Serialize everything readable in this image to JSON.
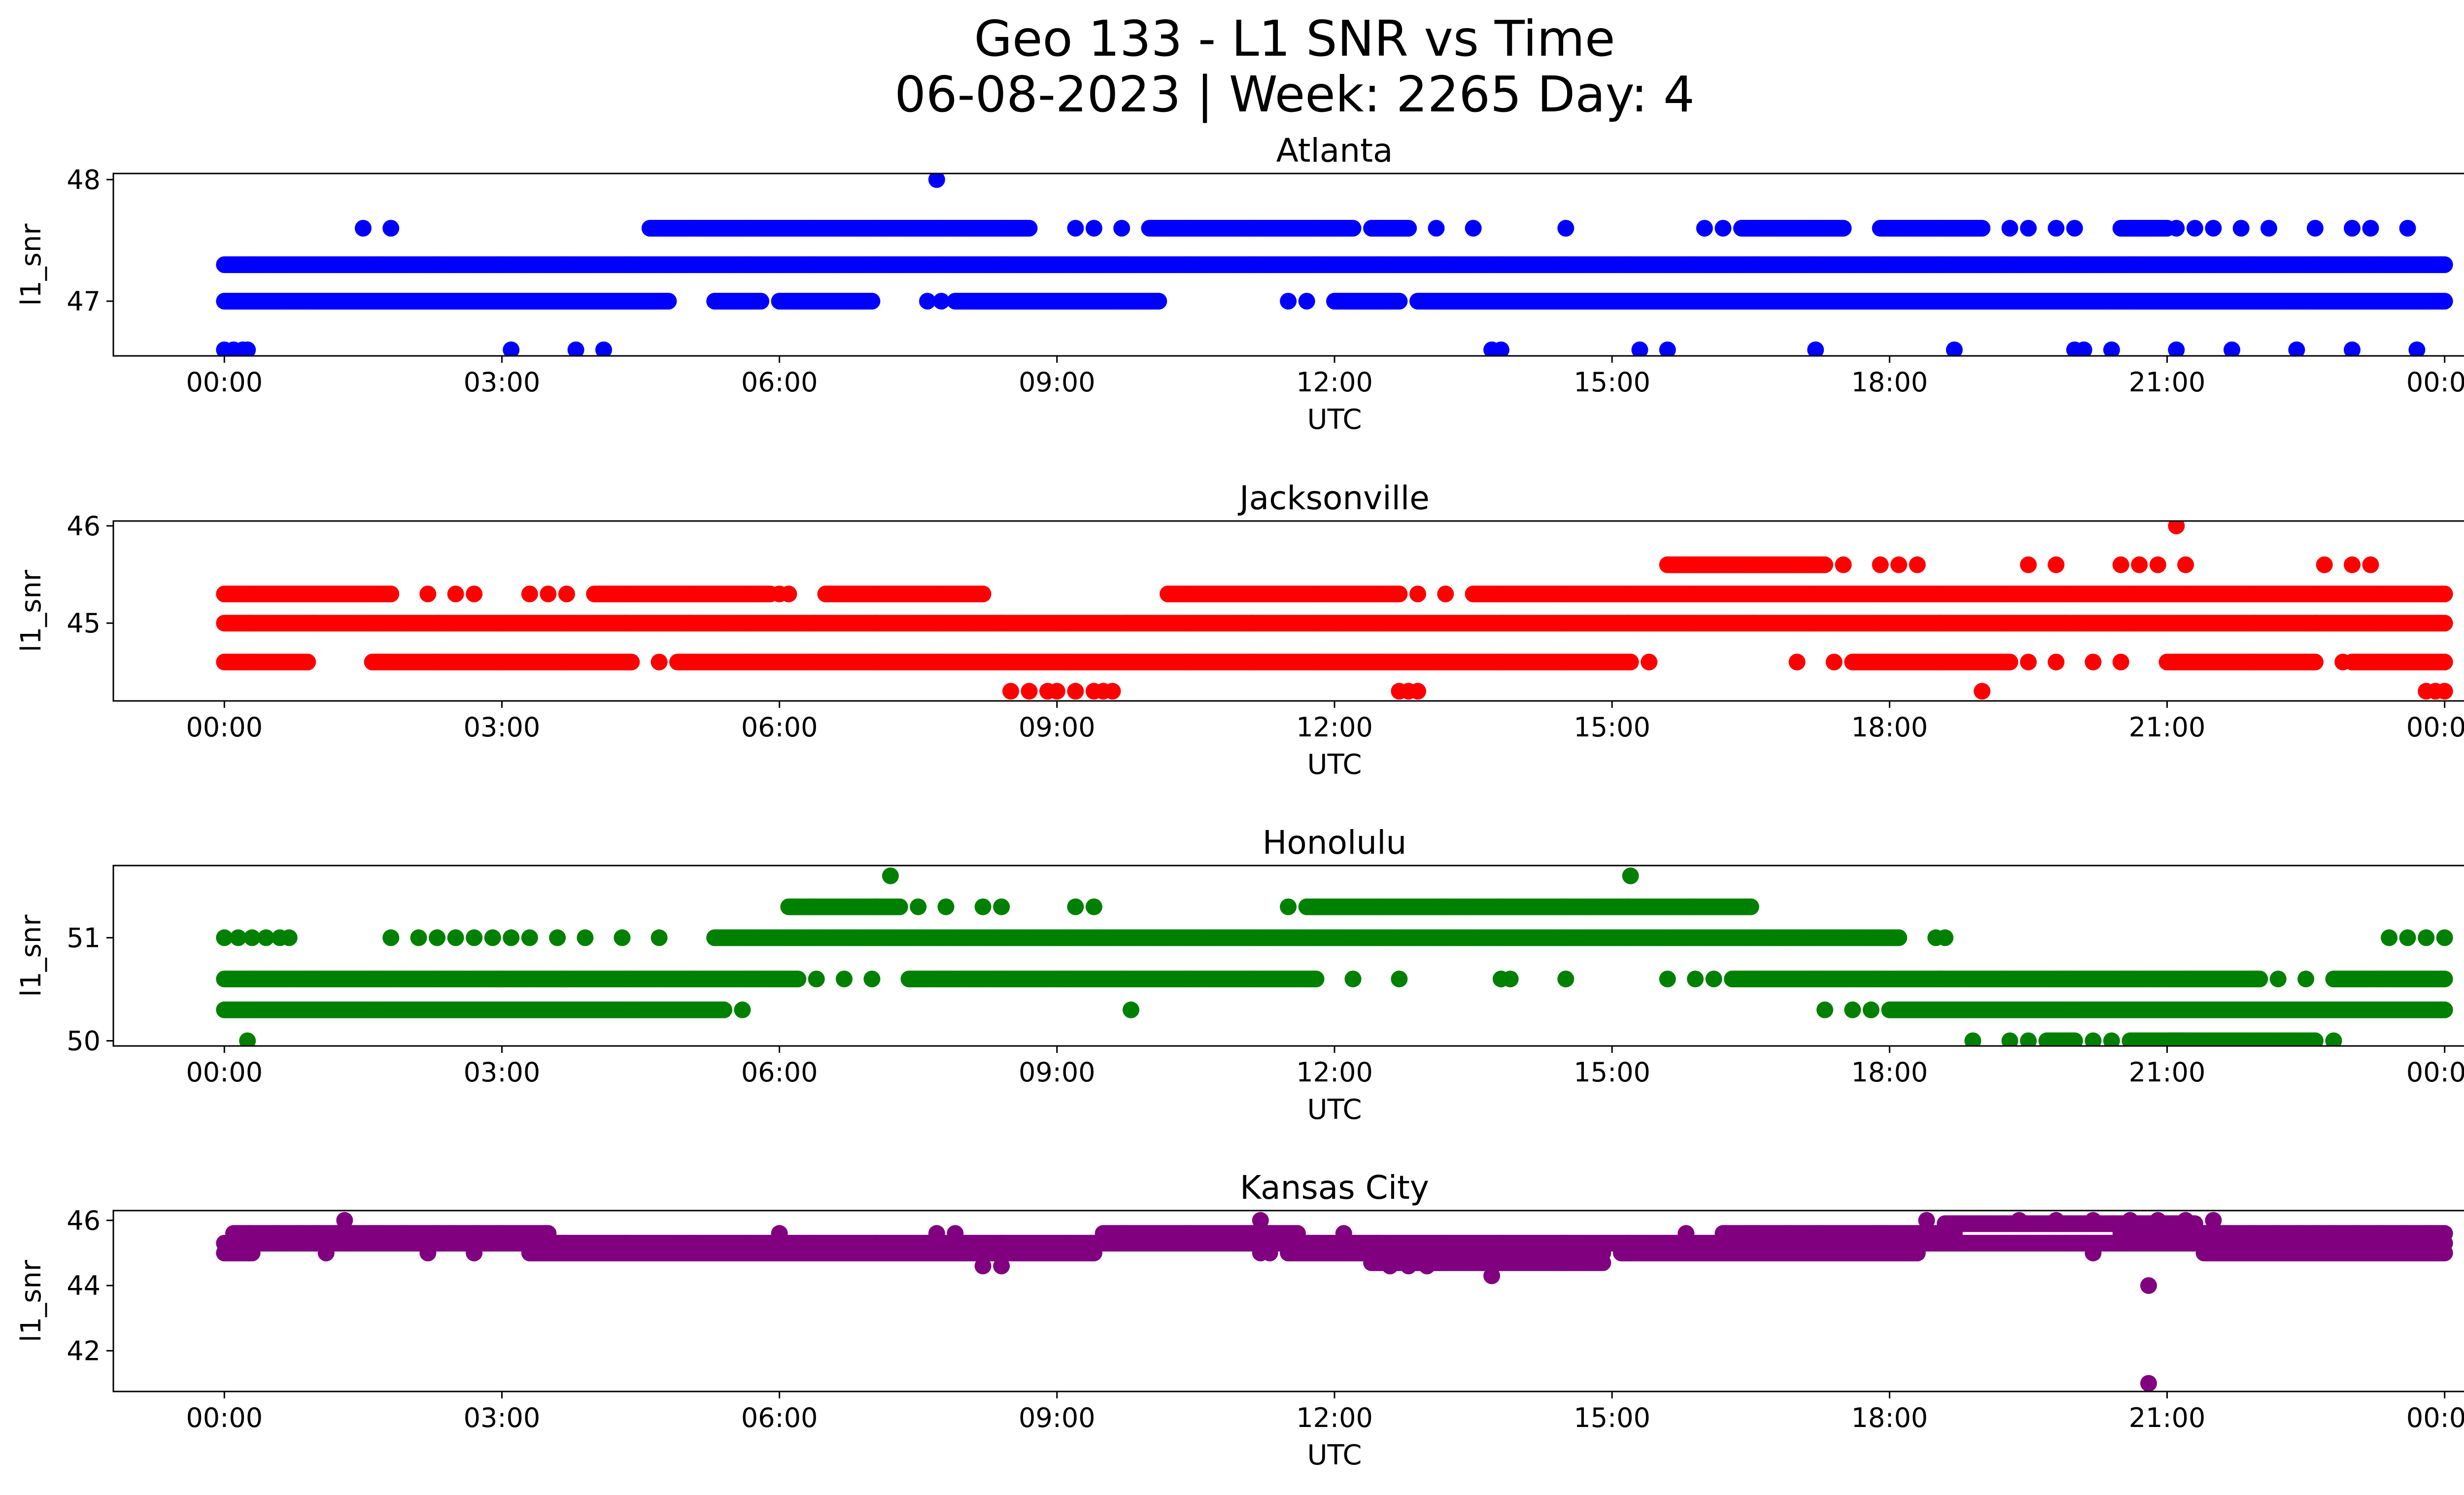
{
  "figure": {
    "title_line1": "Geo 133 - L1 SNR vs Time",
    "title_line2": "06-08-2023 | Week: 2265 Day: 4"
  },
  "chart_data": [
    {
      "type": "scatter",
      "title": "Atlanta",
      "xlabel": "UTC",
      "ylabel": "l1_snr",
      "color": "#0000ff",
      "xlim": [
        -1.2,
        25.2
      ],
      "ylim": [
        46.55,
        48.05
      ],
      "xticks": [
        "00:00",
        "03:00",
        "06:00",
        "09:00",
        "12:00",
        "15:00",
        "18:00",
        "21:00",
        "00:00"
      ],
      "yticks": [
        47,
        48
      ],
      "bands": [
        {
          "y": 47.3,
          "ranges": [
            [
              0.0,
              24.0
            ]
          ]
        },
        {
          "y": 47.0,
          "ranges": [
            [
              0.0,
              4.8
            ],
            [
              5.3,
              5.8
            ],
            [
              6.0,
              7.0
            ],
            [
              7.9,
              10.1
            ],
            [
              12.0,
              12.7
            ],
            [
              12.9,
              24.0
            ]
          ]
        },
        {
          "y": 47.6,
          "ranges": [
            [
              4.6,
              8.7
            ],
            [
              10.0,
              12.2
            ],
            [
              12.4,
              12.8
            ],
            [
              16.4,
              17.5
            ],
            [
              17.9,
              19.0
            ],
            [
              20.5,
              21.0
            ]
          ]
        }
      ],
      "points": [
        {
          "x": 0.0,
          "y": 46.6
        },
        {
          "x": 0.1,
          "y": 46.6
        },
        {
          "x": 0.2,
          "y": 46.6
        },
        {
          "x": 0.25,
          "y": 46.6
        },
        {
          "x": 3.1,
          "y": 46.6
        },
        {
          "x": 3.8,
          "y": 46.6
        },
        {
          "x": 4.1,
          "y": 46.6
        },
        {
          "x": 13.7,
          "y": 46.6
        },
        {
          "x": 13.8,
          "y": 46.6
        },
        {
          "x": 15.3,
          "y": 46.6
        },
        {
          "x": 15.6,
          "y": 46.6
        },
        {
          "x": 17.2,
          "y": 46.6
        },
        {
          "x": 18.7,
          "y": 46.6
        },
        {
          "x": 20.0,
          "y": 46.6
        },
        {
          "x": 20.1,
          "y": 46.6
        },
        {
          "x": 20.4,
          "y": 46.6
        },
        {
          "x": 21.1,
          "y": 46.6
        },
        {
          "x": 21.7,
          "y": 46.6
        },
        {
          "x": 22.4,
          "y": 46.6
        },
        {
          "x": 23.0,
          "y": 46.6
        },
        {
          "x": 23.7,
          "y": 46.6
        },
        {
          "x": 7.6,
          "y": 47.0
        },
        {
          "x": 7.75,
          "y": 47.0
        },
        {
          "x": 11.5,
          "y": 47.0
        },
        {
          "x": 11.7,
          "y": 47.0
        },
        {
          "x": 1.5,
          "y": 47.6
        },
        {
          "x": 1.8,
          "y": 47.6
        },
        {
          "x": 9.2,
          "y": 47.6
        },
        {
          "x": 9.4,
          "y": 47.6
        },
        {
          "x": 9.7,
          "y": 47.6
        },
        {
          "x": 13.1,
          "y": 47.6
        },
        {
          "x": 13.5,
          "y": 47.6
        },
        {
          "x": 14.5,
          "y": 47.6
        },
        {
          "x": 16.0,
          "y": 47.6
        },
        {
          "x": 16.2,
          "y": 47.6
        },
        {
          "x": 19.3,
          "y": 47.6
        },
        {
          "x": 19.5,
          "y": 47.6
        },
        {
          "x": 19.8,
          "y": 47.6
        },
        {
          "x": 20.0,
          "y": 47.6
        },
        {
          "x": 21.1,
          "y": 47.6
        },
        {
          "x": 21.3,
          "y": 47.6
        },
        {
          "x": 21.5,
          "y": 47.6
        },
        {
          "x": 21.8,
          "y": 47.6
        },
        {
          "x": 22.1,
          "y": 47.6
        },
        {
          "x": 22.6,
          "y": 47.6
        },
        {
          "x": 23.0,
          "y": 47.6
        },
        {
          "x": 23.2,
          "y": 47.6
        },
        {
          "x": 23.6,
          "y": 47.6
        },
        {
          "x": 7.7,
          "y": 48.0
        }
      ]
    },
    {
      "type": "scatter",
      "title": "Jacksonville",
      "xlabel": "UTC",
      "ylabel": "l1_snr",
      "color": "#ff0000",
      "xlim": [
        -1.2,
        25.2
      ],
      "ylim": [
        44.2,
        46.05
      ],
      "xticks": [
        "00:00",
        "03:00",
        "06:00",
        "09:00",
        "12:00",
        "15:00",
        "18:00",
        "21:00",
        "00:00"
      ],
      "yticks": [
        45,
        46
      ],
      "bands": [
        {
          "y": 45.0,
          "ranges": [
            [
              0.0,
              24.0
            ]
          ]
        },
        {
          "y": 45.3,
          "ranges": [
            [
              0.0,
              1.8
            ],
            [
              4.0,
              5.9
            ],
            [
              6.5,
              8.2
            ],
            [
              10.2,
              12.7
            ],
            [
              13.5,
              24.0
            ]
          ]
        },
        {
          "y": 44.6,
          "ranges": [
            [
              0.0,
              0.9
            ],
            [
              1.6,
              4.4
            ],
            [
              4.9,
              15.2
            ],
            [
              17.6,
              19.3
            ],
            [
              21.0,
              22.6
            ],
            [
              23.0,
              24.0
            ]
          ]
        },
        {
          "y": 45.6,
          "ranges": [
            [
              15.6,
              17.3
            ]
          ]
        }
      ],
      "points": [
        {
          "x": 2.2,
          "y": 45.3
        },
        {
          "x": 2.5,
          "y": 45.3
        },
        {
          "x": 2.7,
          "y": 45.3
        },
        {
          "x": 3.3,
          "y": 45.3
        },
        {
          "x": 3.5,
          "y": 45.3
        },
        {
          "x": 3.7,
          "y": 45.3
        },
        {
          "x": 6.0,
          "y": 45.3
        },
        {
          "x": 6.1,
          "y": 45.3
        },
        {
          "x": 12.9,
          "y": 45.3
        },
        {
          "x": 13.2,
          "y": 45.3
        },
        {
          "x": 4.7,
          "y": 44.6
        },
        {
          "x": 15.4,
          "y": 44.6
        },
        {
          "x": 17.0,
          "y": 44.6
        },
        {
          "x": 17.4,
          "y": 44.6
        },
        {
          "x": 19.5,
          "y": 44.6
        },
        {
          "x": 19.8,
          "y": 44.6
        },
        {
          "x": 20.2,
          "y": 44.6
        },
        {
          "x": 20.5,
          "y": 44.6
        },
        {
          "x": 22.9,
          "y": 44.6
        },
        {
          "x": 8.5,
          "y": 44.3
        },
        {
          "x": 8.7,
          "y": 44.3
        },
        {
          "x": 8.9,
          "y": 44.3
        },
        {
          "x": 9.0,
          "y": 44.3
        },
        {
          "x": 9.2,
          "y": 44.3
        },
        {
          "x": 9.4,
          "y": 44.3
        },
        {
          "x": 9.5,
          "y": 44.3
        },
        {
          "x": 9.6,
          "y": 44.3
        },
        {
          "x": 12.7,
          "y": 44.3
        },
        {
          "x": 12.8,
          "y": 44.3
        },
        {
          "x": 12.9,
          "y": 44.3
        },
        {
          "x": 19.0,
          "y": 44.3
        },
        {
          "x": 23.8,
          "y": 44.3
        },
        {
          "x": 23.9,
          "y": 44.3
        },
        {
          "x": 24.0,
          "y": 44.3
        },
        {
          "x": 17.5,
          "y": 45.6
        },
        {
          "x": 17.9,
          "y": 45.6
        },
        {
          "x": 18.1,
          "y": 45.6
        },
        {
          "x": 18.3,
          "y": 45.6
        },
        {
          "x": 19.5,
          "y": 45.6
        },
        {
          "x": 19.8,
          "y": 45.6
        },
        {
          "x": 20.5,
          "y": 45.6
        },
        {
          "x": 20.7,
          "y": 45.6
        },
        {
          "x": 20.9,
          "y": 45.6
        },
        {
          "x": 21.2,
          "y": 45.6
        },
        {
          "x": 22.7,
          "y": 45.6
        },
        {
          "x": 23.0,
          "y": 45.6
        },
        {
          "x": 23.2,
          "y": 45.6
        },
        {
          "x": 21.1,
          "y": 46.0
        }
      ]
    },
    {
      "type": "scatter",
      "title": "Honolulu",
      "xlabel": "UTC",
      "ylabel": "l1_snr",
      "color": "#008000",
      "xlim": [
        -1.2,
        25.2
      ],
      "ylim": [
        49.95,
        51.7
      ],
      "xticks": [
        "00:00",
        "03:00",
        "06:00",
        "09:00",
        "12:00",
        "15:00",
        "18:00",
        "21:00",
        "00:00"
      ],
      "yticks": [
        50,
        51
      ],
      "bands": [
        {
          "y": 50.6,
          "ranges": [
            [
              0.0,
              6.2
            ],
            [
              7.4,
              11.8
            ],
            [
              16.3,
              22.0
            ],
            [
              22.8,
              24.0
            ]
          ]
        },
        {
          "y": 50.3,
          "ranges": [
            [
              0.0,
              5.4
            ],
            [
              18.0,
              24.0
            ]
          ]
        },
        {
          "y": 51.0,
          "ranges": [
            [
              5.3,
              18.1
            ]
          ]
        },
        {
          "y": 51.3,
          "ranges": [
            [
              6.1,
              7.3
            ],
            [
              11.7,
              16.5
            ]
          ]
        },
        {
          "y": 50.0,
          "ranges": [
            [
              19.7,
              20.0
            ],
            [
              20.6,
              21.2
            ],
            [
              21.0,
              22.6
            ]
          ]
        }
      ],
      "points": [
        {
          "x": 0.0,
          "y": 51.0
        },
        {
          "x": 0.15,
          "y": 51.0
        },
        {
          "x": 0.3,
          "y": 51.0
        },
        {
          "x": 0.45,
          "y": 51.0
        },
        {
          "x": 0.6,
          "y": 51.0
        },
        {
          "x": 0.7,
          "y": 51.0
        },
        {
          "x": 1.8,
          "y": 51.0
        },
        {
          "x": 2.1,
          "y": 51.0
        },
        {
          "x": 2.3,
          "y": 51.0
        },
        {
          "x": 2.5,
          "y": 51.0
        },
        {
          "x": 2.7,
          "y": 51.0
        },
        {
          "x": 2.9,
          "y": 51.0
        },
        {
          "x": 3.1,
          "y": 51.0
        },
        {
          "x": 3.3,
          "y": 51.0
        },
        {
          "x": 3.6,
          "y": 51.0
        },
        {
          "x": 3.9,
          "y": 51.0
        },
        {
          "x": 4.3,
          "y": 51.0
        },
        {
          "x": 4.7,
          "y": 51.0
        },
        {
          "x": 18.5,
          "y": 51.0
        },
        {
          "x": 18.6,
          "y": 51.0
        },
        {
          "x": 23.4,
          "y": 51.0
        },
        {
          "x": 23.6,
          "y": 51.0
        },
        {
          "x": 23.8,
          "y": 51.0
        },
        {
          "x": 24.0,
          "y": 51.0
        },
        {
          "x": 6.4,
          "y": 50.6
        },
        {
          "x": 6.7,
          "y": 50.6
        },
        {
          "x": 7.0,
          "y": 50.6
        },
        {
          "x": 12.2,
          "y": 50.6
        },
        {
          "x": 12.7,
          "y": 50.6
        },
        {
          "x": 13.8,
          "y": 50.6
        },
        {
          "x": 13.9,
          "y": 50.6
        },
        {
          "x": 14.5,
          "y": 50.6
        },
        {
          "x": 15.6,
          "y": 50.6
        },
        {
          "x": 15.9,
          "y": 50.6
        },
        {
          "x": 16.1,
          "y": 50.6
        },
        {
          "x": 22.2,
          "y": 50.6
        },
        {
          "x": 22.5,
          "y": 50.6
        },
        {
          "x": 5.6,
          "y": 50.3
        },
        {
          "x": 9.8,
          "y": 50.3
        },
        {
          "x": 17.3,
          "y": 50.3
        },
        {
          "x": 17.6,
          "y": 50.3
        },
        {
          "x": 17.8,
          "y": 50.3
        },
        {
          "x": 0.25,
          "y": 50.0
        },
        {
          "x": 18.9,
          "y": 50.0
        },
        {
          "x": 19.3,
          "y": 50.0
        },
        {
          "x": 19.5,
          "y": 50.0
        },
        {
          "x": 20.2,
          "y": 50.0
        },
        {
          "x": 20.4,
          "y": 50.0
        },
        {
          "x": 22.8,
          "y": 50.0
        },
        {
          "x": 7.5,
          "y": 51.3
        },
        {
          "x": 7.8,
          "y": 51.3
        },
        {
          "x": 8.2,
          "y": 51.3
        },
        {
          "x": 8.4,
          "y": 51.3
        },
        {
          "x": 9.2,
          "y": 51.3
        },
        {
          "x": 9.4,
          "y": 51.3
        },
        {
          "x": 11.5,
          "y": 51.3
        },
        {
          "x": 7.2,
          "y": 51.6
        },
        {
          "x": 15.2,
          "y": 51.6
        }
      ]
    },
    {
      "type": "scatter",
      "title": "Kansas City",
      "xlabel": "UTC",
      "ylabel": "l1_snr",
      "color": "#800080",
      "xlim": [
        -1.2,
        25.2
      ],
      "ylim": [
        40.75,
        46.3
      ],
      "xticks": [
        "00:00",
        "03:00",
        "06:00",
        "09:00",
        "12:00",
        "15:00",
        "18:00",
        "21:00",
        "00:00"
      ],
      "yticks": [
        42,
        44,
        46
      ],
      "bands": [
        {
          "y": 45.3,
          "ranges": [
            [
              0.0,
              24.0
            ]
          ]
        },
        {
          "y": 45.6,
          "ranges": [
            [
              0.1,
              3.5
            ],
            [
              9.5,
              11.6
            ],
            [
              16.2,
              18.7
            ],
            [
              20.5,
              24.0
            ]
          ]
        },
        {
          "y": 45.0,
          "ranges": [
            [
              0.0,
              0.3
            ],
            [
              3.3,
              9.4
            ],
            [
              11.5,
              14.9
            ],
            [
              15.1,
              18.3
            ],
            [
              21.4,
              24.0
            ]
          ]
        },
        {
          "y": 45.9,
          "ranges": [
            [
              18.6,
              21.3
            ]
          ]
        },
        {
          "y": 44.7,
          "ranges": [
            [
              12.4,
              14.9
            ]
          ]
        }
      ],
      "points": [
        {
          "x": 1.3,
          "y": 46.0
        },
        {
          "x": 11.2,
          "y": 46.0
        },
        {
          "x": 18.4,
          "y": 46.0
        },
        {
          "x": 19.4,
          "y": 46.0
        },
        {
          "x": 19.8,
          "y": 46.0
        },
        {
          "x": 20.2,
          "y": 46.0
        },
        {
          "x": 20.6,
          "y": 46.0
        },
        {
          "x": 20.9,
          "y": 46.0
        },
        {
          "x": 21.2,
          "y": 46.0
        },
        {
          "x": 21.5,
          "y": 46.0
        },
        {
          "x": 6.0,
          "y": 45.6
        },
        {
          "x": 7.7,
          "y": 45.6
        },
        {
          "x": 7.9,
          "y": 45.6
        },
        {
          "x": 12.1,
          "y": 45.6
        },
        {
          "x": 15.8,
          "y": 45.6
        },
        {
          "x": 1.1,
          "y": 45.0
        },
        {
          "x": 2.2,
          "y": 45.0
        },
        {
          "x": 2.7,
          "y": 45.0
        },
        {
          "x": 11.2,
          "y": 45.0
        },
        {
          "x": 11.3,
          "y": 45.0
        },
        {
          "x": 20.2,
          "y": 45.0
        },
        {
          "x": 8.2,
          "y": 44.6
        },
        {
          "x": 8.4,
          "y": 44.6
        },
        {
          "x": 12.6,
          "y": 44.6
        },
        {
          "x": 12.8,
          "y": 44.6
        },
        {
          "x": 13.0,
          "y": 44.6
        },
        {
          "x": 13.7,
          "y": 44.3
        },
        {
          "x": 20.8,
          "y": 45.3
        },
        {
          "x": 20.8,
          "y": 44.0
        },
        {
          "x": 20.8,
          "y": 41.0
        }
      ]
    }
  ]
}
